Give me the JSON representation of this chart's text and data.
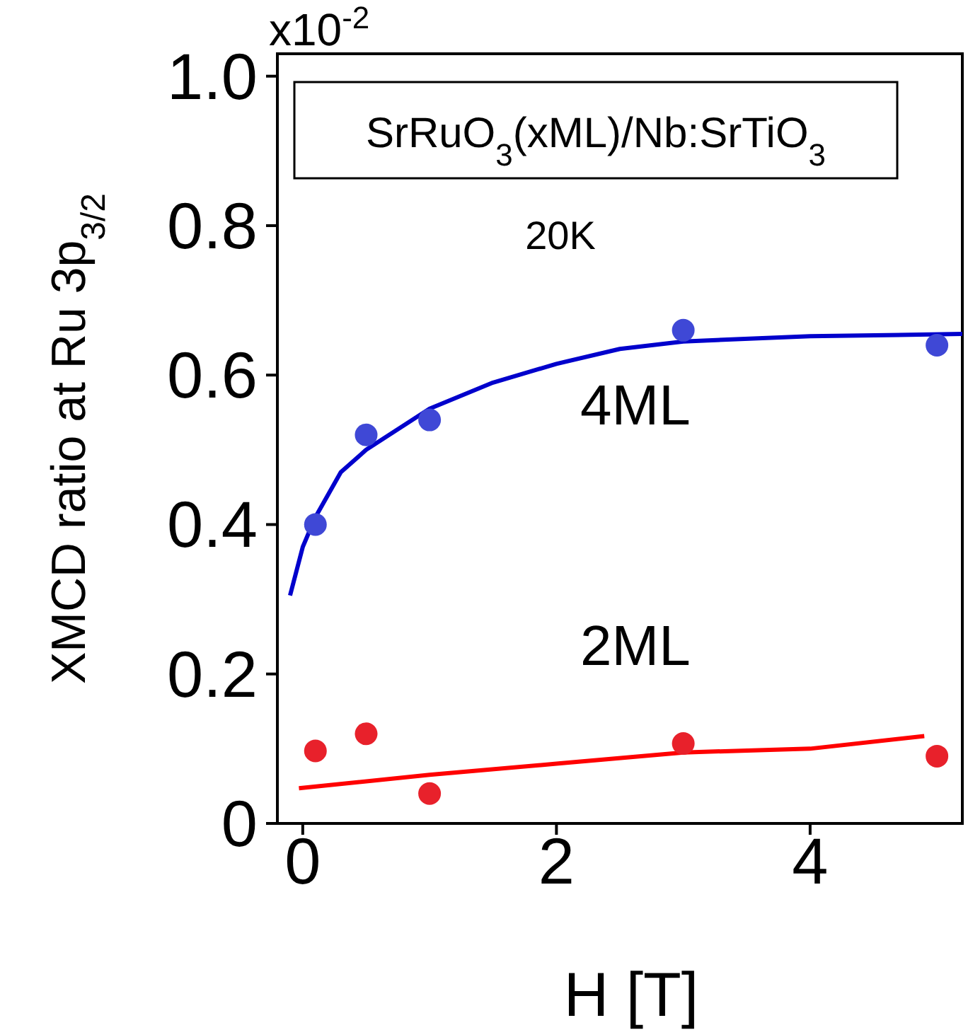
{
  "chart_data": {
    "type": "scatter",
    "xlabel": "H [T]",
    "ylabel": "XMCD ratio at  Ru 3p$_{3/2}$",
    "annotations": [
      "SrRuO$_{3}$(xML)/Nb:SrTiO$_{3}$",
      "20K",
      "x10$^{-2}$"
    ],
    "xlim": [
      -0.2,
      5.2
    ],
    "xticks": [
      0,
      2,
      4
    ],
    "ylim": [
      0,
      1.03
    ],
    "yticks": [
      0,
      0.2,
      0.4,
      0.6,
      0.8,
      {
        "value": 1.0,
        "label": "1.0"
      }
    ],
    "marker": "circle",
    "series": [
      {
        "name": "4ML",
        "color": "#3f48d6",
        "x": [
          0.1,
          0.5,
          1,
          3,
          5
        ],
        "values": [
          0.4,
          0.52,
          0.54,
          0.66,
          0.64
        ]
      },
      {
        "type": "line",
        "marker": "none",
        "color": "#0000cc",
        "line_style": "solid",
        "x": [
          -0.1,
          0,
          0.1,
          0.3,
          0.5,
          1,
          1.5,
          2,
          2.5,
          3,
          4,
          5.2
        ],
        "values": [
          0.305,
          0.37,
          0.41,
          0.47,
          0.5,
          0.555,
          0.59,
          0.615,
          0.635,
          0.645,
          0.652,
          0.655
        ]
      },
      {
        "name": "2ML",
        "color": "#e8212b",
        "x": [
          0.1,
          0.5,
          1,
          3,
          5
        ],
        "values": [
          0.097,
          0.12,
          0.04,
          0.107,
          0.09
        ]
      },
      {
        "type": "line",
        "marker": "none",
        "color": "#ff0000",
        "line_style": "solid",
        "x": [
          -0.03,
          1,
          2,
          3,
          4,
          4.9
        ],
        "values": [
          0.047,
          0.065,
          0.08,
          0.095,
          0.1,
          0.117
        ]
      }
    ]
  }
}
